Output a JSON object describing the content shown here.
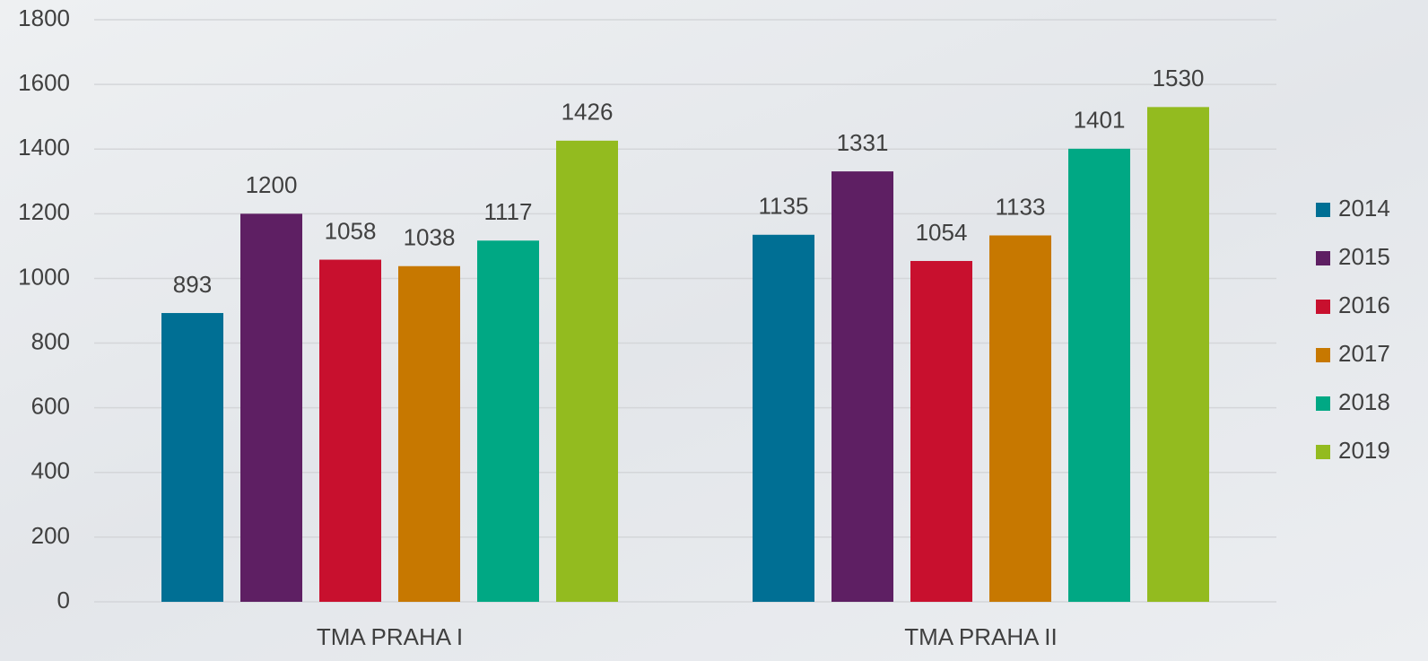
{
  "chart_data": {
    "type": "bar",
    "categories": [
      "TMA PRAHA I",
      "TMA PRAHA II"
    ],
    "series": [
      {
        "name": "2014",
        "color": "#006f94",
        "values": [
          893,
          1135
        ]
      },
      {
        "name": "2015",
        "color": "#5e1f63",
        "values": [
          1200,
          1331
        ]
      },
      {
        "name": "2016",
        "color": "#c8102e",
        "values": [
          1058,
          1054
        ]
      },
      {
        "name": "2017",
        "color": "#c77800",
        "values": [
          1038,
          1133
        ]
      },
      {
        "name": "2018",
        "color": "#00a884",
        "values": [
          1117,
          1401
        ]
      },
      {
        "name": "2019",
        "color": "#93bb1f",
        "values": [
          1426,
          1530
        ]
      }
    ],
    "ylim": [
      0,
      1800
    ],
    "yticks": [
      0,
      200,
      400,
      600,
      800,
      1000,
      1200,
      1400,
      1600,
      1800
    ],
    "grid": true,
    "legend": "right"
  }
}
